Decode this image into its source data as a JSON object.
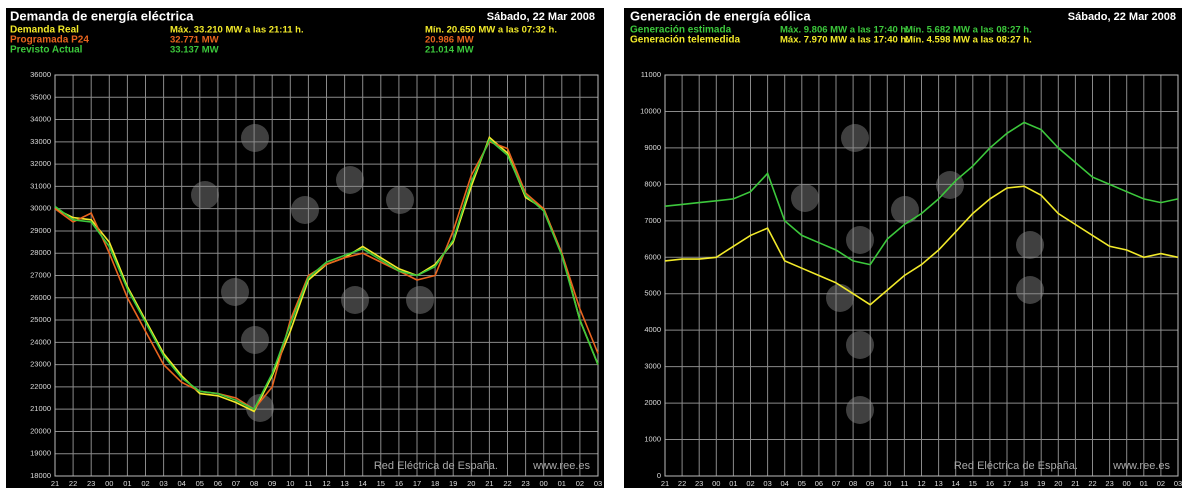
{
  "chart_data": [
    {
      "type": "line",
      "title": "Demanda de energía eléctrica",
      "date": "Sábado, 22 Mar 2008",
      "source": "Red Eléctrica de España.",
      "url": "www.ree.es",
      "categories": [
        "21",
        "22",
        "23",
        "00",
        "01",
        "02",
        "03",
        "04",
        "05",
        "06",
        "07",
        "08",
        "09",
        "10",
        "11",
        "12",
        "13",
        "14",
        "15",
        "16",
        "17",
        "18",
        "19",
        "20",
        "21",
        "22",
        "23",
        "00",
        "01",
        "02",
        "03"
      ],
      "ylim": [
        18000,
        36000
      ],
      "yticks": [
        18000,
        19000,
        20000,
        21000,
        22000,
        23000,
        24000,
        25000,
        26000,
        27000,
        28000,
        29000,
        30000,
        31000,
        32000,
        33000,
        34000,
        35000,
        36000
      ],
      "grid": true,
      "series": [
        {
          "name": "Demanda Real",
          "color": "#f2ea2a",
          "max_label": "Máx. 33.210 MW  a las 21:11 h.",
          "min_label": "Mín. 20.650 MW  a las 07:32 h.",
          "values": [
            30000,
            29600,
            29500,
            28500,
            26500,
            25000,
            23500,
            22500,
            21700,
            21600,
            21300,
            20900,
            22500,
            24500,
            26800,
            27500,
            27800,
            28300,
            27800,
            27300,
            27000,
            27500,
            28500,
            31000,
            33200,
            32500,
            30500,
            30000,
            28000,
            25000,
            23000
          ]
        },
        {
          "name": "Programada P24",
          "color": "#e8641e",
          "max_label": "32.771 MW",
          "min_label": "20.986 MW",
          "values": [
            30000,
            29400,
            29800,
            28000,
            26000,
            24500,
            23000,
            22200,
            21800,
            21700,
            21500,
            21000,
            22000,
            25000,
            27000,
            27500,
            27800,
            28000,
            27600,
            27200,
            26800,
            27000,
            29000,
            31500,
            33000,
            32700,
            30700,
            30000,
            28000,
            25500,
            23500
          ]
        },
        {
          "name": "Previsto Actual",
          "color": "#3cc83c",
          "max_label": "33.137 MW",
          "min_label": "21.014 MW",
          "values": [
            30100,
            29500,
            29400,
            28300,
            26400,
            24900,
            23400,
            22400,
            21800,
            21700,
            21400,
            21000,
            22600,
            24800,
            26900,
            27600,
            27900,
            28200,
            27700,
            27200,
            27000,
            27400,
            28600,
            31200,
            33100,
            32400,
            30600,
            29900,
            27900,
            25000,
            23000
          ]
        }
      ]
    },
    {
      "type": "line",
      "title": "Generación de energía eólica",
      "date": "Sábado, 22 Mar 2008",
      "source": "Red Eléctrica de España.",
      "url": "www.ree.es",
      "categories": [
        "21",
        "22",
        "23",
        "00",
        "01",
        "02",
        "03",
        "04",
        "05",
        "06",
        "07",
        "08",
        "09",
        "10",
        "11",
        "12",
        "13",
        "14",
        "15",
        "16",
        "17",
        "18",
        "19",
        "20",
        "21",
        "22",
        "23",
        "00",
        "01",
        "02",
        "03"
      ],
      "ylim": [
        0,
        11000
      ],
      "yticks": [
        0,
        1000,
        2000,
        3000,
        4000,
        5000,
        6000,
        7000,
        8000,
        9000,
        10000,
        11000
      ],
      "grid": true,
      "series": [
        {
          "name": "Generación estimada",
          "color": "#3cc83c",
          "max_label": "Máx. 9.806 MW a las 17:40 h.",
          "min_label": "Mín. 5.682 MW a las 08:27 h.",
          "values": [
            7400,
            7450,
            7500,
            7550,
            7600,
            7800,
            8300,
            7000,
            6600,
            6400,
            6200,
            5900,
            5800,
            6500,
            6900,
            7200,
            7600,
            8100,
            8500,
            9000,
            9400,
            9700,
            9500,
            9000,
            8600,
            8200,
            8000,
            7800,
            7600,
            7500,
            7600
          ]
        },
        {
          "name": "Generación telemedida",
          "color": "#f2ea2a",
          "max_label": "Máx. 7.970 MW a las 17:40 h.",
          "min_label": "Mín. 4.598 MW a las 08:27 h.",
          "values": [
            5900,
            5950,
            5950,
            6000,
            6300,
            6600,
            6800,
            5900,
            5700,
            5500,
            5300,
            5000,
            4700,
            5100,
            5500,
            5800,
            6200,
            6700,
            7200,
            7600,
            7900,
            7950,
            7700,
            7200,
            6900,
            6600,
            6300,
            6200,
            6000,
            6100,
            6000
          ]
        }
      ]
    }
  ]
}
